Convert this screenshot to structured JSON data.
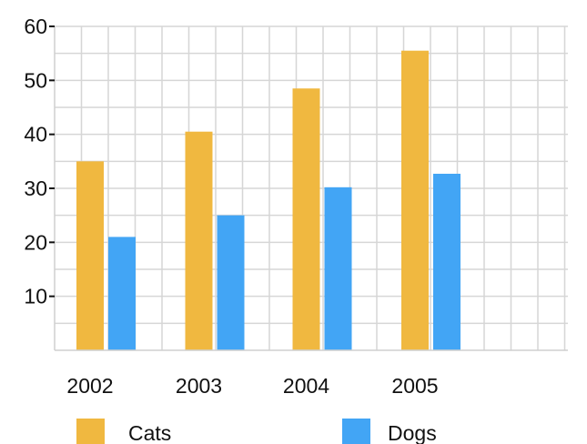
{
  "chart_data": {
    "type": "bar",
    "categories": [
      "2002",
      "2003",
      "2004",
      "2005"
    ],
    "series": [
      {
        "name": "Cats",
        "values": [
          35,
          40.5,
          48.5,
          55.5
        ],
        "color": "#F0B840"
      },
      {
        "name": "Dogs",
        "values": [
          21,
          25,
          30.2,
          32.7
        ],
        "color": "#42A5F5"
      }
    ],
    "y_ticks": [
      "10",
      "20",
      "30",
      "40",
      "50",
      "60"
    ],
    "ylim": [
      0,
      60
    ],
    "grid": true,
    "legend_position": "bottom",
    "title": "",
    "xlabel": "",
    "ylabel": ""
  }
}
